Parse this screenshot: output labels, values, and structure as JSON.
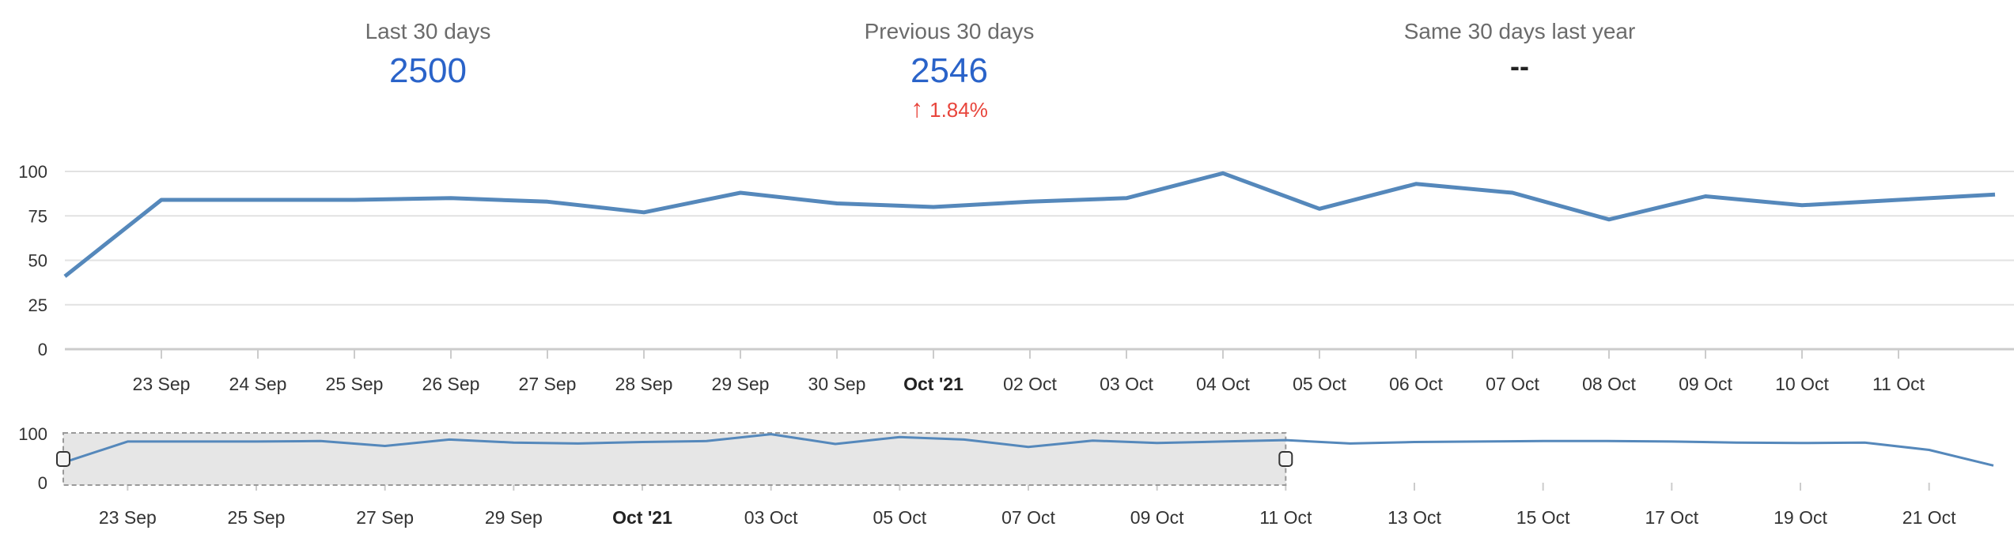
{
  "summary": {
    "last_30": {
      "label": "Last 30 days",
      "value": "2500"
    },
    "previous_30": {
      "label": "Previous 30 days",
      "value": "2546",
      "change": "1.84%"
    },
    "last_year": {
      "label": "Same 30 days last year",
      "value": "--"
    }
  },
  "colors": {
    "series": "#5588bb",
    "value": "#2a63c9",
    "change": "#e8453c"
  },
  "icons": {
    "change": "arrow-up-icon"
  },
  "chart_data": [
    {
      "type": "line",
      "x": [
        "2021-09-22",
        "2021-09-23",
        "2021-09-24",
        "2021-09-25",
        "2021-09-26",
        "2021-09-27",
        "2021-09-28",
        "2021-09-29",
        "2021-09-30",
        "2021-10-01",
        "2021-10-02",
        "2021-10-03",
        "2021-10-04",
        "2021-10-05",
        "2021-10-06",
        "2021-10-07",
        "2021-10-08",
        "2021-10-09",
        "2021-10-10",
        "2021-10-11",
        "2021-10-12"
      ],
      "values": [
        41,
        84,
        84,
        84,
        85,
        83,
        77,
        88,
        82,
        80,
        83,
        85,
        99,
        79,
        93,
        88,
        73,
        86,
        81,
        84,
        87
      ],
      "ylim": [
        0,
        100
      ],
      "yticks": [
        "0",
        "25",
        "50",
        "75",
        "100"
      ],
      "xtick_labels": [
        "23 Sep",
        "24 Sep",
        "25 Sep",
        "26 Sep",
        "27 Sep",
        "28 Sep",
        "29 Sep",
        "30 Sep",
        "Oct '21",
        "02 Oct",
        "03 Oct",
        "04 Oct",
        "05 Oct",
        "06 Oct",
        "07 Oct",
        "08 Oct",
        "09 Oct",
        "10 Oct",
        "11 Oct"
      ],
      "grid": true
    },
    {
      "type": "line",
      "x": [
        "2021-09-22",
        "2021-09-23",
        "2021-09-24",
        "2021-09-25",
        "2021-09-26",
        "2021-09-27",
        "2021-09-28",
        "2021-09-29",
        "2021-09-30",
        "2021-10-01",
        "2021-10-02",
        "2021-10-03",
        "2021-10-04",
        "2021-10-05",
        "2021-10-06",
        "2021-10-07",
        "2021-10-08",
        "2021-10-09",
        "2021-10-10",
        "2021-10-11",
        "2021-10-12",
        "2021-10-13",
        "2021-10-14",
        "2021-10-15",
        "2021-10-16",
        "2021-10-17",
        "2021-10-18",
        "2021-10-19",
        "2021-10-20",
        "2021-10-21",
        "2021-10-22"
      ],
      "values": [
        41,
        84,
        84,
        84,
        85,
        75,
        88,
        82,
        80,
        83,
        85,
        99,
        79,
        93,
        88,
        73,
        86,
        81,
        84,
        87,
        80,
        83,
        84,
        85,
        85,
        84,
        82,
        81,
        82,
        67,
        35
      ],
      "ylim": [
        0,
        100
      ],
      "yticks": [
        "0",
        "100"
      ],
      "xtick_labels": [
        "23 Sep",
        "25 Sep",
        "27 Sep",
        "29 Sep",
        "Oct '21",
        "03 Oct",
        "05 Oct",
        "07 Oct",
        "09 Oct",
        "11 Oct",
        "13 Oct",
        "15 Oct",
        "17 Oct",
        "19 Oct",
        "21 Oct"
      ],
      "selection_range": [
        "2021-09-22",
        "2021-10-11"
      ]
    }
  ]
}
